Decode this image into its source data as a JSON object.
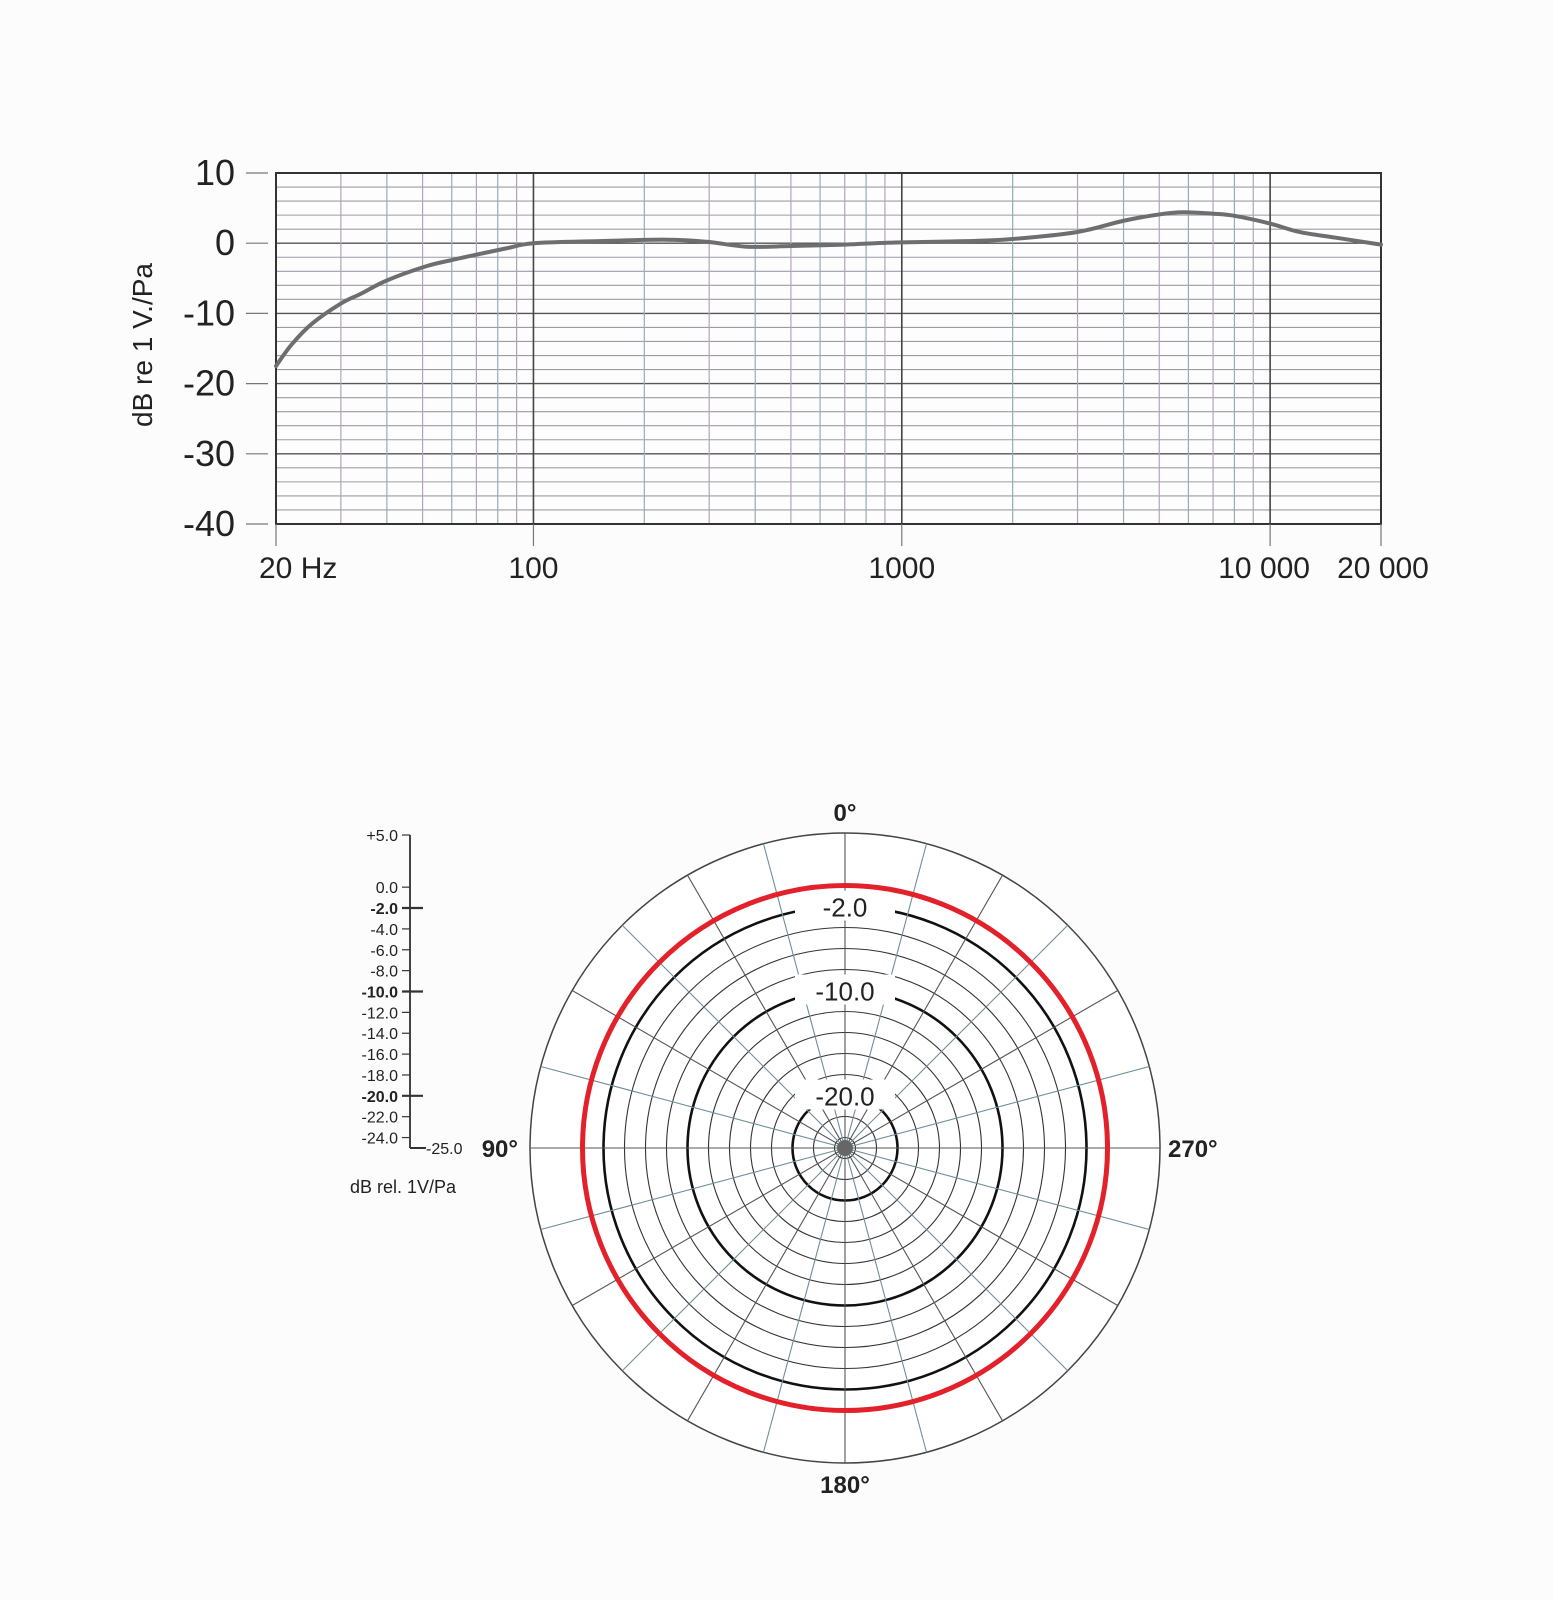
{
  "chart_data": [
    {
      "type": "line",
      "ylabel": "dB re 1 V./Pa",
      "xlabel": "",
      "x_scale": "log",
      "xlim": [
        20,
        20000
      ],
      "ylim": [
        -40,
        10
      ],
      "grid": true,
      "x_tick_labels": [
        {
          "value": 20,
          "label": "20 Hz"
        },
        {
          "value": 100,
          "label": "100"
        },
        {
          "value": 1000,
          "label": "1000"
        },
        {
          "value": 10000,
          "label": "10 000"
        },
        {
          "value": 20000,
          "label": "20 000"
        }
      ],
      "y_tick_labels": [
        "10",
        "0",
        "-10",
        "-20",
        "-30",
        "-40"
      ],
      "line_color": "#6e6e70",
      "series": [
        {
          "x": [
            20,
            22,
            25,
            30,
            34,
            40,
            51,
            60,
            72,
            85,
            100,
            150,
            230,
            296,
            380,
            500,
            700,
            960,
            1500,
            2000,
            3000,
            4000,
            5000,
            5800,
            7000,
            8000,
            10000,
            12000,
            15000,
            20000
          ],
          "y": [
            -17.5,
            -14.5,
            -11.5,
            -8.6,
            -7.2,
            -5.3,
            -3.3,
            -2.4,
            -1.5,
            -0.7,
            0,
            0.3,
            0.5,
            0.2,
            -0.5,
            -0.4,
            -0.2,
            0.1,
            0.3,
            0.6,
            1.6,
            3.2,
            4.1,
            4.4,
            4.2,
            3.9,
            2.8,
            1.6,
            0.8,
            -0.2
          ]
        }
      ]
    },
    {
      "type": "polar",
      "scale_label": "dB rel. 1V/Pa",
      "rlim": [
        -25,
        5
      ],
      "scale_ticks": [
        {
          "value": 5,
          "label": "+5.0",
          "bold": false
        },
        {
          "value": 0,
          "label": "0.0",
          "bold": false
        },
        {
          "value": -2,
          "label": "-2.0",
          "bold": true
        },
        {
          "value": -4,
          "label": "-4.0",
          "bold": false
        },
        {
          "value": -6,
          "label": "-6.0",
          "bold": false
        },
        {
          "value": -8,
          "label": "-8.0",
          "bold": false
        },
        {
          "value": -10,
          "label": "-10.0",
          "bold": true
        },
        {
          "value": -12,
          "label": "-12.0",
          "bold": false
        },
        {
          "value": -14,
          "label": "-14.0",
          "bold": false
        },
        {
          "value": -16,
          "label": "-16.0",
          "bold": false
        },
        {
          "value": -18,
          "label": "-18.0",
          "bold": false
        },
        {
          "value": -20,
          "label": "-20.0",
          "bold": true
        },
        {
          "value": -22,
          "label": "-22.0",
          "bold": false
        },
        {
          "value": -24,
          "label": "-24.0",
          "bold": false
        },
        {
          "value": -25,
          "label": "-25.0",
          "bold": false
        }
      ],
      "ring_labels": [
        "-2.0",
        "-10.0",
        "-20.0"
      ],
      "angle_labels": [
        {
          "angle": 0,
          "label": "0°"
        },
        {
          "angle": 90,
          "label": "90°"
        },
        {
          "angle": 180,
          "label": "180°"
        },
        {
          "angle": 270,
          "label": "270°"
        }
      ],
      "angle_step_deg": 15,
      "series": [
        {
          "color": "#e3212b",
          "angles": [
            0,
            45,
            90,
            135,
            180,
            225,
            270,
            315
          ],
          "values": [
            0,
            0,
            0,
            0,
            0,
            0,
            0,
            0
          ]
        }
      ]
    }
  ]
}
